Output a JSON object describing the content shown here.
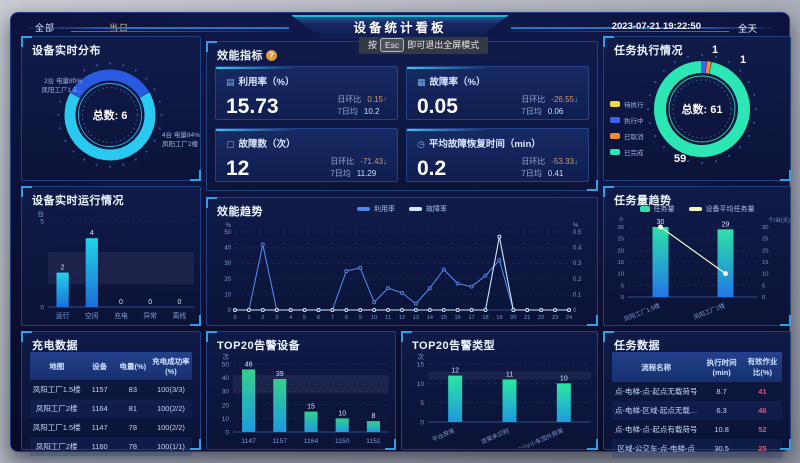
{
  "colors": {
    "accent_cyan": "#29c9f0",
    "accent_teal": "#2ce6b4",
    "accent_blue": "#2a5adf",
    "accent_orange": "#f28b33",
    "accent_yellow": "#f5d941",
    "danger_red": "#e0566a",
    "panel_border": "#20407f",
    "background_navy": "#0a0f33"
  },
  "header": {
    "left_tabs": [
      {
        "label": "全部"
      },
      {
        "label": "当日"
      }
    ],
    "title": "设备统计看板",
    "datetime": "2023-07-21 19:22:50",
    "range_label": "全天",
    "fullscreen_tip": {
      "prefix": "按",
      "key": "Esc",
      "suffix": "即可退出全屏模式"
    }
  },
  "panels": {
    "device_distribution": {
      "title": "设备实时分布",
      "center_label": "总数: 6",
      "labels": {
        "left": [
          "2台 电量80%",
          "凤阳工厂1.5..."
        ],
        "right": [
          "4台 电量84%",
          "凤阳工厂2楼"
        ]
      }
    },
    "device_running": {
      "title": "设备实时运行情况"
    },
    "charging": {
      "title": "充电数据",
      "columns": [
        "地图",
        "设备",
        "电量(%)",
        "充电成功率(%)"
      ],
      "rows": [
        [
          "凤阳工厂1.5楼",
          "1157",
          "83",
          "100(3/3)"
        ],
        [
          "凤阳工厂2楼",
          "1164",
          "81",
          "100(2/2)"
        ],
        [
          "凤阳工厂1.5楼",
          "1147",
          "78",
          "100(2/2)"
        ],
        [
          "凤阳工厂2楼",
          "1160",
          "78",
          "100(1/1)"
        ]
      ]
    },
    "efficiency": {
      "title": "效能指标",
      "help_badge": "?",
      "kpis": [
        {
          "icon_name": "utilization-icon",
          "icon_glyph": "▤",
          "title": "利用率（%）",
          "value": "15.73",
          "ring_label": "日环比",
          "ring_value": "0.15",
          "ring_arrow": "↑",
          "arrow_color": "#e0564f",
          "avg_label": "7日均",
          "avg_value": "10.2"
        },
        {
          "icon_name": "fault-rate-icon",
          "icon_glyph": "▦",
          "title": "故障率（%）",
          "value": "0.05",
          "ring_label": "日环比",
          "ring_value": "-26.55",
          "ring_arrow": "↓",
          "arrow_color": "#3bd6a0",
          "avg_label": "7日均",
          "avg_value": "0.06"
        },
        {
          "icon_name": "fault-count-icon",
          "icon_glyph": "▢",
          "title": "故障数（次）",
          "value": "12",
          "ring_label": "日环比",
          "ring_value": "-71.43",
          "ring_arrow": "↓",
          "arrow_color": "#3bd6a0",
          "avg_label": "7日均",
          "avg_value": "11.29"
        },
        {
          "icon_name": "recovery-time-icon",
          "icon_glyph": "◷",
          "title": "平均故障恢复时间（min）",
          "value": "0.2",
          "ring_label": "日环比",
          "ring_value": "-53.33",
          "ring_arrow": "↓",
          "arrow_color": "#3bd6a0",
          "avg_label": "7日均",
          "avg_value": "0.41"
        }
      ]
    },
    "efficiency_trend": {
      "title": "效能趋势"
    },
    "top20_devices": {
      "title": "TOP20告警设备"
    },
    "top20_types": {
      "title": "TOP20告警类型"
    },
    "task_status": {
      "title": "任务执行情况",
      "center_label": "总数: 61",
      "callouts": {
        "running": "1",
        "cancelled": "1",
        "done": "59"
      }
    },
    "task_trend": {
      "title": "任务量趋势"
    },
    "task_table": {
      "title": "任务数据",
      "columns": [
        "流程名称",
        "执行时间(min)",
        "有效作业比(%)"
      ],
      "rows": [
        [
          "点-电梯-点-起点无载荷号",
          "8.7",
          "41"
        ],
        [
          "点-电梯-区域-起点无载…",
          "6.3",
          "46"
        ],
        [
          "点-电梯-点-起点有载荷号",
          "10.8",
          "52"
        ],
        [
          "区域-公交车-点-电梯-点",
          "30.5",
          "25"
        ]
      ]
    }
  },
  "chart_data": [
    {
      "id": "device-distribution",
      "type": "pie",
      "title": "设备实时分布",
      "total": 6,
      "total_label": "总数: 6",
      "start_deg": -60,
      "slices": [
        {
          "name": "凤阳工厂1.5...",
          "detail": "2台 电量80%",
          "value": 2,
          "color": "#2a5adf"
        },
        {
          "name": "凤阳工厂2楼",
          "detail": "4台 电量84%",
          "value": 4,
          "color": "#29c9f0"
        }
      ]
    },
    {
      "id": "device-running",
      "type": "bar",
      "title": "设备实时运行情况",
      "categories": [
        "运行",
        "空闲",
        "充电",
        "异常",
        "离线"
      ],
      "values": [
        2,
        4,
        0,
        0,
        0
      ],
      "ylabel": "台",
      "ylim": [
        0,
        5
      ],
      "yticks": [
        0,
        5
      ],
      "highlight_band": [
        1.3,
        3.2
      ],
      "bar_colors": [
        "#23d3e8",
        "#1b6fd8"
      ]
    },
    {
      "id": "efficiency-trend",
      "type": "line",
      "title": "效能趋势",
      "x": [
        0,
        1,
        2,
        3,
        4,
        5,
        6,
        7,
        8,
        9,
        10,
        11,
        12,
        13,
        14,
        15,
        16,
        17,
        18,
        19,
        20,
        21,
        22,
        23,
        24
      ],
      "series": [
        {
          "name": "利用率",
          "axis": "left",
          "color": "#4f87e8",
          "values": [
            0,
            0,
            42,
            0,
            0,
            0,
            0,
            0,
            25,
            27,
            5,
            14,
            11,
            4,
            14,
            26,
            17,
            15,
            22,
            32,
            0,
            0,
            0,
            0,
            0
          ]
        },
        {
          "name": "故障率",
          "axis": "right",
          "color": "#cfe8ff",
          "values": [
            0,
            0,
            0,
            0,
            0,
            0,
            0,
            0,
            0,
            0,
            0,
            0,
            0,
            0,
            0,
            0,
            0,
            0,
            0,
            0.47,
            0,
            0,
            0,
            0,
            0
          ]
        }
      ],
      "left_axis": {
        "unit": "%",
        "lim": [
          0,
          50
        ],
        "ticks": [
          0,
          10,
          20,
          30,
          40,
          50
        ]
      },
      "right_axis": {
        "unit": "%",
        "lim": [
          0,
          0.5
        ],
        "ticks": [
          0,
          0.1,
          0.2,
          0.3,
          0.4,
          0.5
        ]
      },
      "legend_position": "top"
    },
    {
      "id": "top20-devices",
      "type": "bar",
      "title": "TOP20告警设备",
      "categories": [
        "1147",
        "1157",
        "1164",
        "1150",
        "1151"
      ],
      "values": [
        46,
        39,
        15,
        10,
        8
      ],
      "ylabel": "次",
      "ylim": [
        0,
        50
      ],
      "yticks": [
        0,
        10,
        20,
        30,
        40,
        50
      ],
      "highlight_band": [
        28,
        42
      ],
      "bar_colors": [
        "#35d08c",
        "#1e9ae0"
      ]
    },
    {
      "id": "top20-types",
      "type": "bar",
      "title": "TOP20告警类型",
      "categories": [
        "平台异常",
        "货架未识别",
        "AGV小车顶升异常"
      ],
      "values": [
        12,
        11,
        10
      ],
      "ylabel": "次",
      "ylim": [
        0,
        15
      ],
      "yticks": [
        0,
        5,
        10,
        15
      ],
      "highlight_band": [
        11,
        13
      ],
      "rotate_labels": true,
      "bar_colors": [
        "#2ce6a0",
        "#1e9ae0"
      ]
    },
    {
      "id": "task-status",
      "type": "pie",
      "title": "任务执行情况",
      "total": 61,
      "total_label": "总数: 61",
      "start_deg": 0,
      "slices": [
        {
          "name": "执行中",
          "value": 1,
          "color": "#3a62f5"
        },
        {
          "name": "已取消",
          "value": 1,
          "color": "#f28b33"
        },
        {
          "name": "已完成",
          "value": 59,
          "color": "#2ce6b4"
        }
      ],
      "legend": [
        {
          "name": "待执行",
          "color": "#f5d941",
          "value": 0
        },
        {
          "name": "执行中",
          "color": "#3a62f5",
          "value": 1
        },
        {
          "name": "已取消",
          "color": "#f28b33",
          "value": 1
        },
        {
          "name": "已完成",
          "color": "#2ce6b4",
          "value": 59
        }
      ]
    },
    {
      "id": "task-trend",
      "type": "bar",
      "title": "任务量趋势",
      "categories": [
        "凤阳工厂1.5楼",
        "凤阳工厂2楼"
      ],
      "series": [
        {
          "name": "任务量",
          "render": "bar",
          "values": [
            30,
            29
          ]
        },
        {
          "name": "设备平均任务量",
          "render": "line",
          "color": "#f3f7c8",
          "values": [
            30,
            10
          ]
        }
      ],
      "ylabel_left": "个",
      "ylabel_right": "个/台(天)",
      "ylim": [
        0,
        30
      ],
      "yticks": [
        0,
        5,
        10,
        15,
        20,
        25,
        30
      ],
      "rotate_labels": true,
      "bar_colors": [
        "#2ee0a8",
        "#2377e8"
      ]
    }
  ]
}
